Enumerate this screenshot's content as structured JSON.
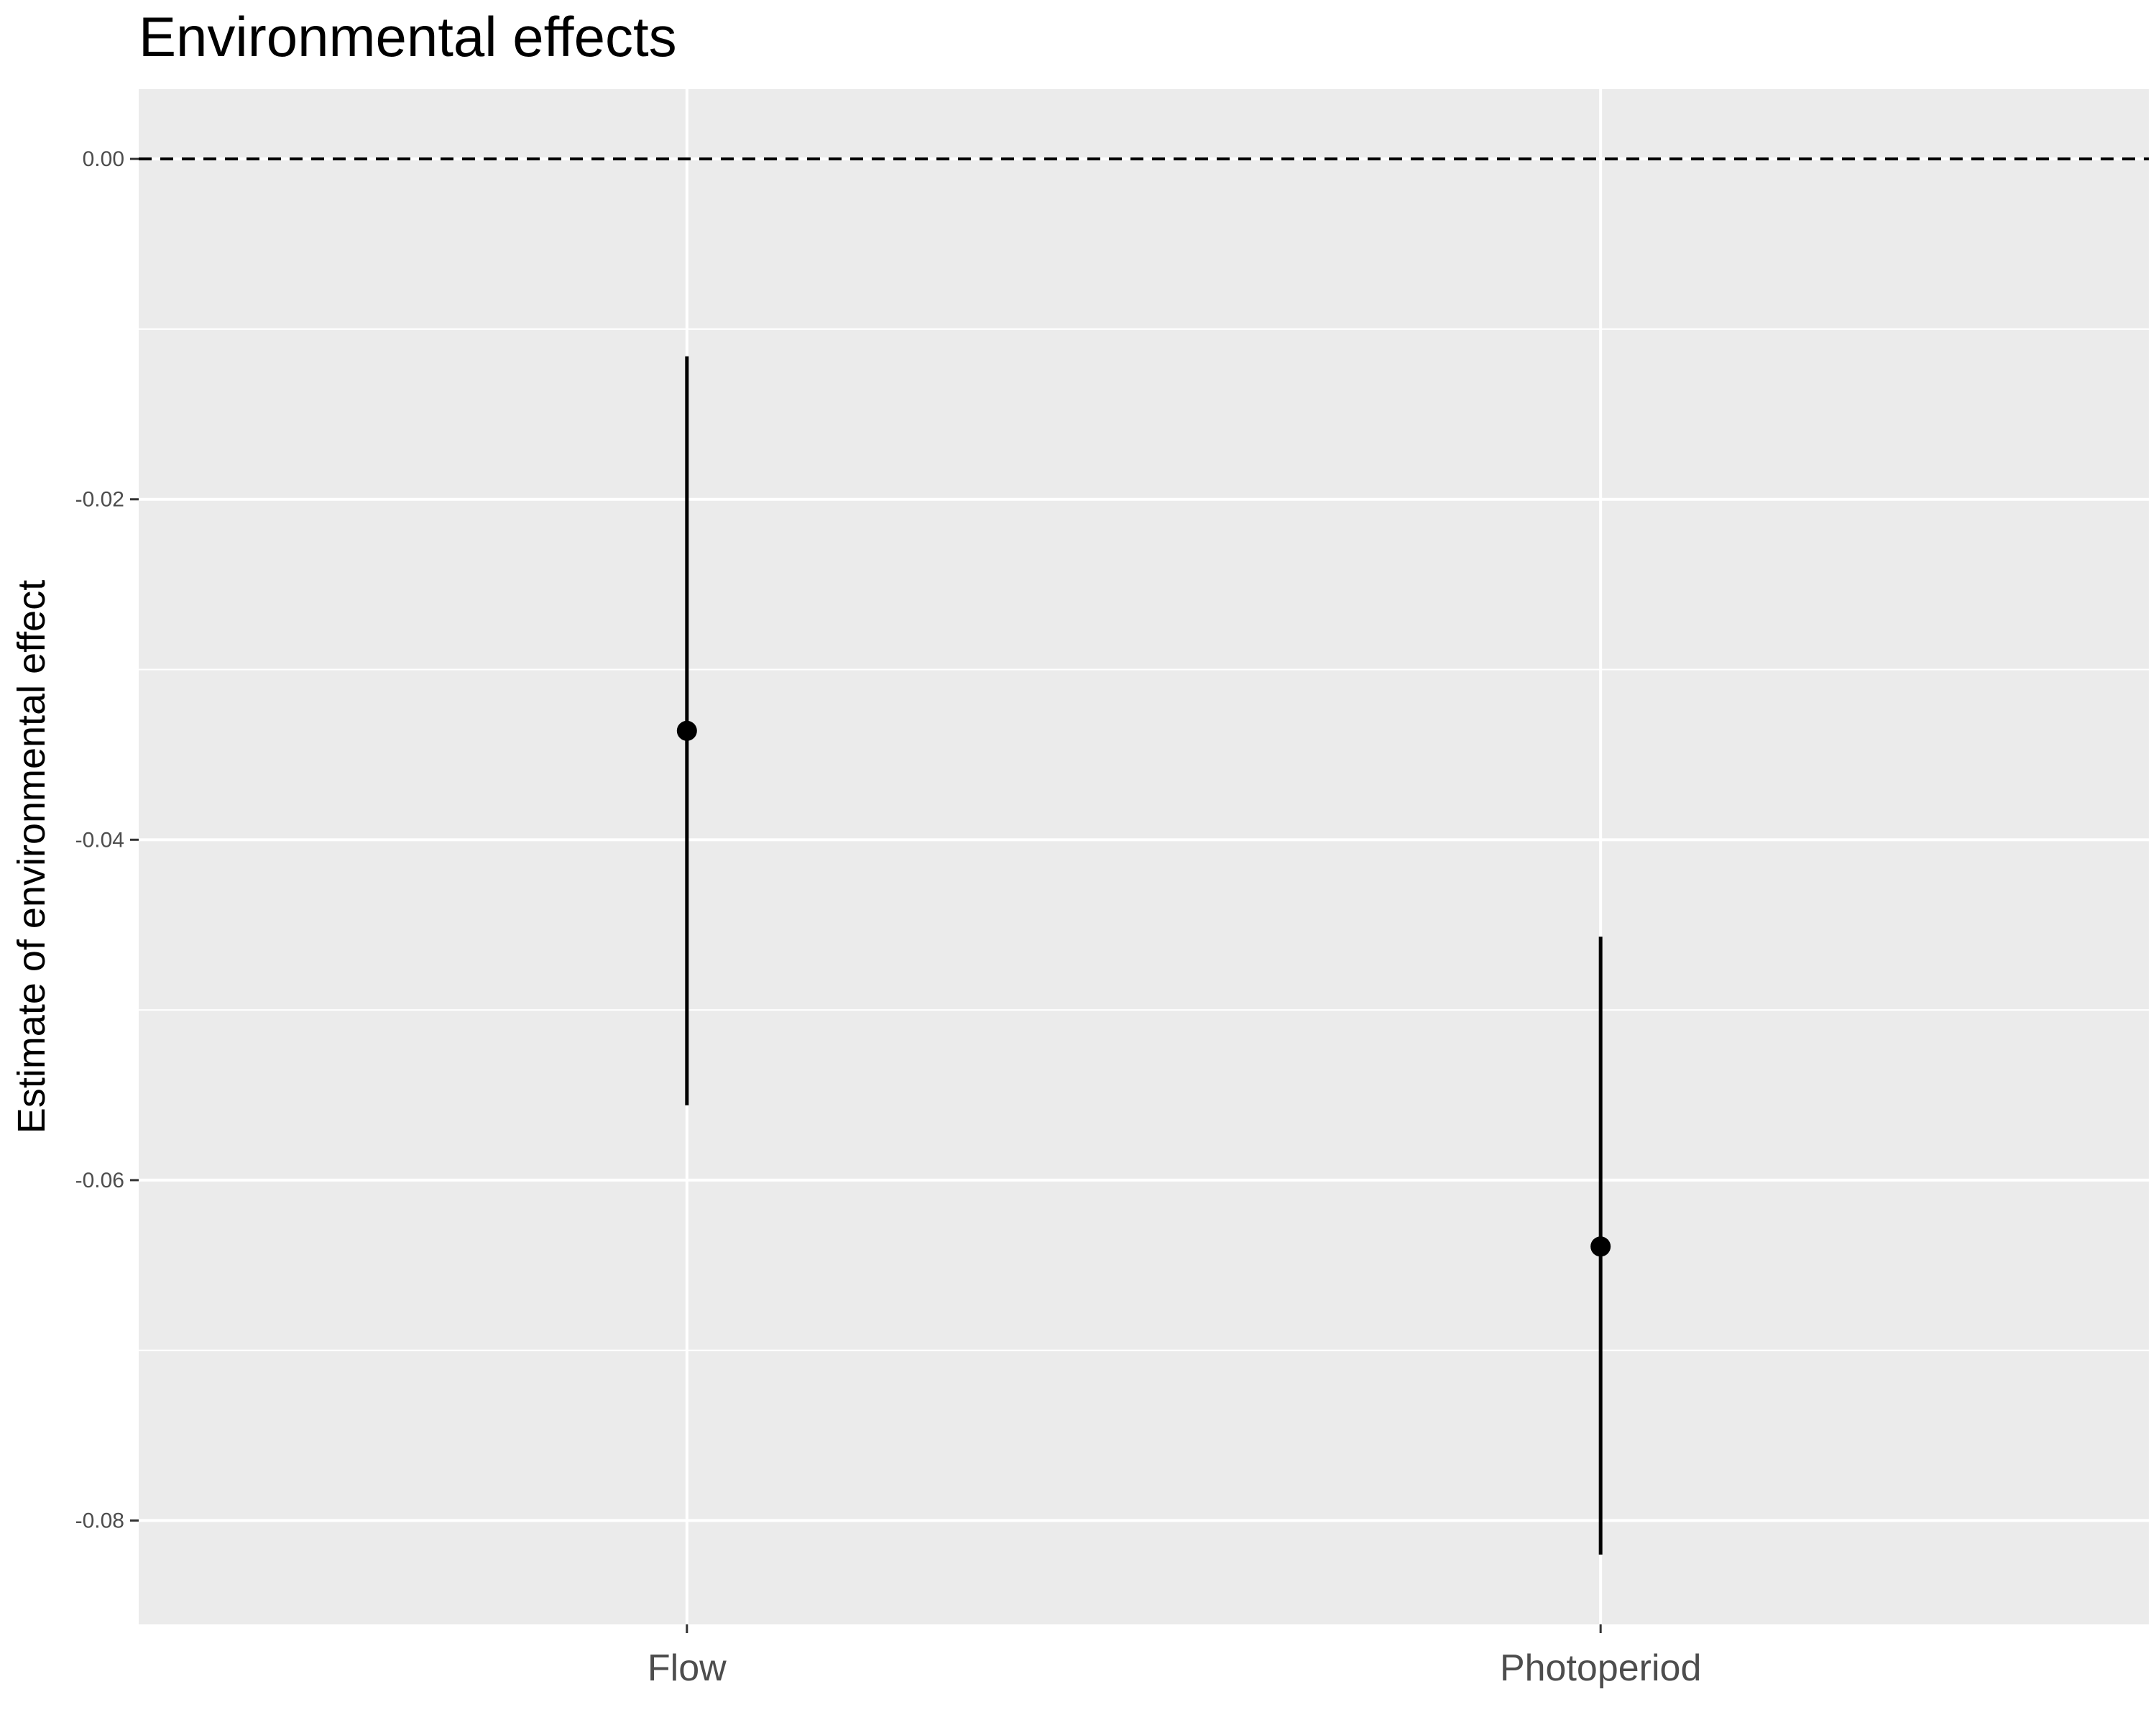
{
  "chart_data": {
    "type": "pointrange",
    "title": "Environmental effects",
    "xlabel": "",
    "ylabel": "Estimate of environmental effect",
    "categories": [
      "Flow",
      "Photoperiod"
    ],
    "points": [
      {
        "category": "Flow",
        "estimate": -0.0336,
        "lower": -0.0556,
        "upper": -0.0116
      },
      {
        "category": "Photoperiod",
        "estimate": -0.0639,
        "lower": -0.082,
        "upper": -0.0457
      }
    ],
    "ylim": [
      -0.0861,
      0.0041
    ],
    "y_ticks": [
      {
        "value": 0.0,
        "label": "0.00"
      },
      {
        "value": -0.02,
        "label": "-0.02"
      },
      {
        "value": -0.04,
        "label": "-0.04"
      },
      {
        "value": -0.06,
        "label": "-0.06"
      },
      {
        "value": -0.08,
        "label": "-0.08"
      }
    ],
    "y_minor_ticks": [
      -0.01,
      -0.03,
      -0.05,
      -0.07
    ],
    "reference_line": {
      "value": 0.0,
      "style": "dashed"
    },
    "grid": true,
    "theme": "grey-panel",
    "colors": {
      "panel": "#ebebeb",
      "grid": "#ffffff",
      "mark": "#000000",
      "tick_text": "#4d4d4d",
      "tick_mark": "#333333"
    }
  }
}
